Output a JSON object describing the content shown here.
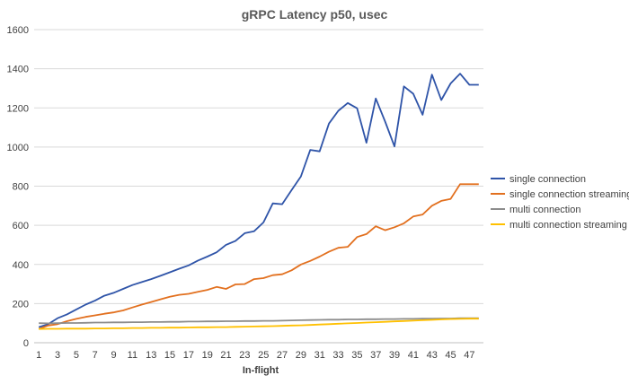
{
  "chart_data": {
    "type": "line",
    "title": "gRPC Latency p50, usec",
    "xlabel": "In-flight",
    "ylabel": "",
    "ylim": [
      0,
      1600
    ],
    "yticks": [
      0,
      200,
      400,
      600,
      800,
      1000,
      1200,
      1400,
      1600
    ],
    "x": [
      1,
      2,
      3,
      4,
      5,
      6,
      7,
      8,
      9,
      10,
      11,
      12,
      13,
      14,
      15,
      16,
      17,
      18,
      19,
      20,
      21,
      22,
      23,
      24,
      25,
      26,
      27,
      28,
      29,
      30,
      31,
      32,
      33,
      34,
      35,
      36,
      37,
      38,
      39,
      40,
      41,
      42,
      43,
      44,
      45,
      46,
      47,
      48
    ],
    "xtick_labels": [
      "1",
      "3",
      "5",
      "7",
      "9",
      "11",
      "13",
      "15",
      "17",
      "19",
      "21",
      "23",
      "25",
      "27",
      "29",
      "31",
      "33",
      "35",
      "37",
      "39",
      "41",
      "43",
      "45",
      "47"
    ],
    "grid": "horizontal",
    "legend_position": "right",
    "series": [
      {
        "name": "single connection",
        "color": "#2f54a8",
        "values": [
          80,
          95,
          125,
          145,
          170,
          195,
          215,
          240,
          255,
          275,
          295,
          310,
          325,
          342,
          360,
          378,
          395,
          420,
          440,
          462,
          500,
          520,
          560,
          570,
          615,
          712,
          708,
          780,
          850,
          985,
          978,
          1120,
          1185,
          1225,
          1198,
          1022,
          1248,
          1130,
          1003,
          1310,
          1272,
          1165,
          1370,
          1240,
          1325,
          1375,
          1318,
          1318
        ]
      },
      {
        "name": "single connection streaming",
        "color": "#e2701f",
        "values": [
          70,
          88,
          95,
          110,
          122,
          132,
          140,
          148,
          155,
          165,
          180,
          195,
          208,
          222,
          235,
          245,
          250,
          260,
          270,
          285,
          275,
          298,
          300,
          325,
          330,
          345,
          350,
          370,
          400,
          418,
          440,
          465,
          485,
          490,
          540,
          555,
          595,
          575,
          590,
          610,
          645,
          655,
          700,
          725,
          735,
          810,
          810,
          810
        ]
      },
      {
        "name": "multi connection",
        "color": "#8c8c8c",
        "values": [
          100,
          99,
          100,
          101,
          101,
          102,
          103,
          103,
          104,
          104,
          105,
          105,
          106,
          106,
          107,
          107,
          108,
          108,
          109,
          109,
          110,
          110,
          111,
          111,
          112,
          112,
          113,
          114,
          115,
          116,
          117,
          118,
          118,
          119,
          119,
          120,
          120,
          121,
          121,
          122,
          122,
          123,
          123,
          124,
          124,
          125,
          125,
          125
        ]
      },
      {
        "name": "multi connection streaming",
        "color": "#ffc000",
        "values": [
          70,
          71,
          71,
          72,
          72,
          72,
          73,
          73,
          74,
          74,
          75,
          75,
          76,
          76,
          77,
          77,
          78,
          79,
          79,
          80,
          80,
          81,
          82,
          83,
          84,
          85,
          86,
          88,
          89,
          91,
          93,
          95,
          97,
          99,
          101,
          103,
          105,
          107,
          109,
          111,
          113,
          115,
          117,
          119,
          121,
          122,
          123,
          123
        ]
      }
    ]
  }
}
